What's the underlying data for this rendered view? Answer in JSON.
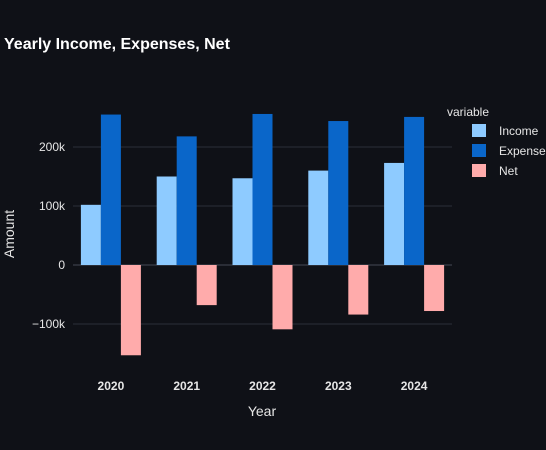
{
  "chart_data": {
    "type": "bar",
    "title": "Yearly Income, Expenses, Net",
    "xlabel": "Year",
    "ylabel": "Amount",
    "categories": [
      "2020",
      "2021",
      "2022",
      "2023",
      "2024"
    ],
    "series": [
      {
        "name": "Income",
        "values": [
          102000,
          150000,
          147000,
          160000,
          173000
        ],
        "color": "#8ecbff"
      },
      {
        "name": "Expenses",
        "values": [
          255000,
          218000,
          256000,
          244000,
          251000
        ],
        "color": "#0a66c9"
      },
      {
        "name": "Net",
        "values": [
          -153000,
          -68000,
          -109000,
          -84000,
          -78000
        ],
        "color": "#ffabab"
      }
    ],
    "ylim": [
      -170000,
      300000
    ],
    "yticks": [
      -100000,
      0,
      100000,
      200000
    ],
    "ytick_labels": [
      "−100k",
      "0",
      "100k",
      "200k"
    ],
    "legend_title": "variable",
    "legend_position": "right",
    "grid": true
  }
}
